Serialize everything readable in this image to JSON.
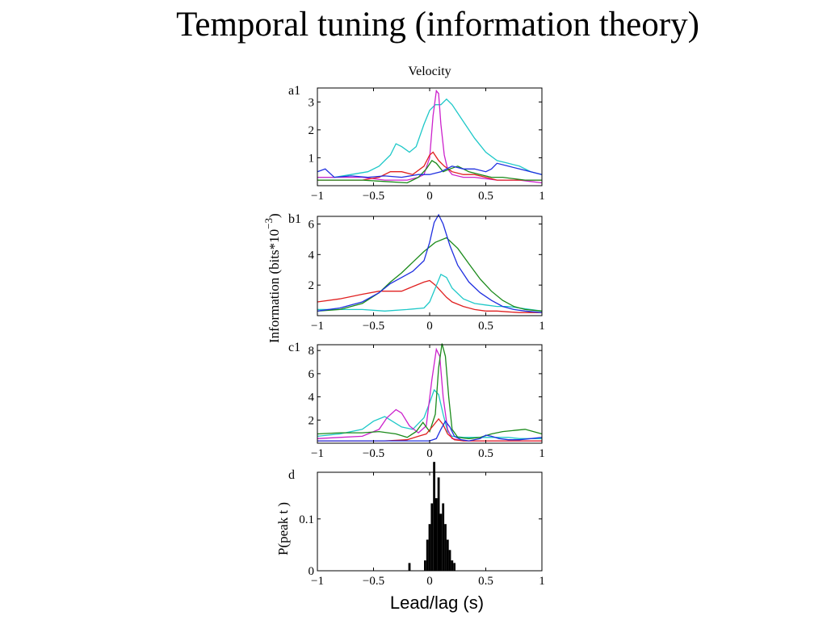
{
  "slide": {
    "title": "Temporal tuning (information theory)",
    "x_axis_label": "Lead/lag (s)"
  },
  "figure": {
    "panel_title": "Velocity",
    "ylabel_main": "Information (bits*10",
    "ylabel_main_exp": "−3",
    "ylabel_main_close": ")",
    "ylabel_hist": "P(peak   t )"
  },
  "chart_data": [
    {
      "id": "a1",
      "label": "a1",
      "type": "line",
      "xlim": [
        -1,
        1
      ],
      "ylim": [
        0,
        3.5
      ],
      "xticks": [
        -1,
        -0.5,
        0,
        0.5,
        1
      ],
      "xtick_labels": [
        "−1",
        "−0.5",
        "0",
        "0.5",
        "1"
      ],
      "yticks": [
        1,
        2,
        3
      ],
      "ytick_labels": [
        "1",
        "2",
        "3"
      ],
      "series": [
        {
          "color": "#1ec8c8",
          "x": [
            -1,
            -0.85,
            -0.7,
            -0.55,
            -0.45,
            -0.35,
            -0.3,
            -0.25,
            -0.18,
            -0.12,
            -0.05,
            0,
            0.05,
            0.1,
            0.15,
            0.2,
            0.3,
            0.4,
            0.5,
            0.6,
            0.7,
            0.8,
            0.9,
            1
          ],
          "y": [
            0.3,
            0.3,
            0.4,
            0.5,
            0.7,
            1.1,
            1.5,
            1.4,
            1.2,
            1.4,
            2.2,
            2.7,
            2.9,
            2.9,
            3.1,
            2.9,
            2.3,
            1.7,
            1.2,
            0.9,
            0.8,
            0.7,
            0.5,
            0.4
          ]
        },
        {
          "color": "#cc22cc",
          "x": [
            -1,
            -0.8,
            -0.6,
            -0.4,
            -0.2,
            -0.1,
            -0.05,
            0,
            0.03,
            0.06,
            0.08,
            0.1,
            0.13,
            0.16,
            0.2,
            0.3,
            0.4,
            0.5,
            0.6,
            0.7,
            0.8,
            0.9,
            1
          ],
          "y": [
            0.3,
            0.3,
            0.3,
            0.2,
            0.2,
            0.3,
            0.4,
            1.0,
            2.5,
            3.4,
            3.3,
            2.2,
            1.1,
            0.6,
            0.4,
            0.3,
            0.3,
            0.25,
            0.2,
            0.2,
            0.2,
            0.15,
            0.1
          ]
        },
        {
          "color": "#e02020",
          "x": [
            -1,
            -0.8,
            -0.6,
            -0.45,
            -0.35,
            -0.25,
            -0.15,
            -0.05,
            0,
            0.03,
            0.08,
            0.13,
            0.2,
            0.3,
            0.4,
            0.5,
            0.6,
            0.7,
            0.8,
            0.9,
            1
          ],
          "y": [
            0.2,
            0.2,
            0.2,
            0.3,
            0.5,
            0.5,
            0.4,
            0.7,
            1.1,
            1.2,
            0.9,
            0.7,
            0.5,
            0.4,
            0.4,
            0.3,
            0.2,
            0.2,
            0.2,
            0.2,
            0.2
          ]
        },
        {
          "color": "#1a8a1a",
          "x": [
            -1,
            -0.8,
            -0.6,
            -0.4,
            -0.2,
            -0.1,
            -0.03,
            0.02,
            0.06,
            0.12,
            0.18,
            0.25,
            0.35,
            0.45,
            0.55,
            0.65,
            0.75,
            0.85,
            1
          ],
          "y": [
            0.2,
            0.2,
            0.2,
            0.15,
            0.1,
            0.3,
            0.6,
            0.9,
            0.8,
            0.5,
            0.6,
            0.7,
            0.5,
            0.4,
            0.3,
            0.3,
            0.25,
            0.2,
            0.2
          ]
        },
        {
          "color": "#2030e0",
          "x": [
            -1,
            -0.93,
            -0.85,
            -0.7,
            -0.55,
            -0.4,
            -0.25,
            -0.1,
            0,
            0.1,
            0.2,
            0.3,
            0.4,
            0.5,
            0.55,
            0.6,
            0.7,
            0.8,
            0.9,
            1
          ],
          "y": [
            0.5,
            0.6,
            0.3,
            0.35,
            0.3,
            0.35,
            0.3,
            0.4,
            0.4,
            0.5,
            0.7,
            0.6,
            0.6,
            0.5,
            0.6,
            0.8,
            0.7,
            0.6,
            0.5,
            0.4
          ]
        }
      ]
    },
    {
      "id": "b1",
      "label": "b1",
      "type": "line",
      "xlim": [
        -1,
        1
      ],
      "ylim": [
        0,
        6.5
      ],
      "xticks": [
        -1,
        -0.5,
        0,
        0.5,
        1
      ],
      "xtick_labels": [
        "−1",
        "−0.5",
        "0",
        "0.5",
        "1"
      ],
      "yticks": [
        2,
        4,
        6
      ],
      "ytick_labels": [
        "2",
        "4",
        "6"
      ],
      "series": [
        {
          "color": "#e02020",
          "x": [
            -1,
            -0.8,
            -0.6,
            -0.45,
            -0.35,
            -0.25,
            -0.15,
            -0.05,
            0,
            0.05,
            0.1,
            0.15,
            0.2,
            0.3,
            0.4,
            0.5,
            0.6,
            0.7,
            0.8,
            0.9,
            1
          ],
          "y": [
            0.9,
            1.1,
            1.4,
            1.6,
            1.6,
            1.6,
            1.9,
            2.2,
            2.3,
            2.0,
            1.6,
            1.2,
            0.9,
            0.6,
            0.4,
            0.3,
            0.3,
            0.25,
            0.2,
            0.2,
            0.2
          ]
        },
        {
          "color": "#1ec8c8",
          "x": [
            -1,
            -0.8,
            -0.6,
            -0.4,
            -0.2,
            -0.05,
            0,
            0.05,
            0.1,
            0.15,
            0.2,
            0.3,
            0.4,
            0.5,
            0.6,
            0.7,
            0.8,
            0.9,
            1
          ],
          "y": [
            0.4,
            0.4,
            0.4,
            0.3,
            0.4,
            0.5,
            0.9,
            1.8,
            2.7,
            2.5,
            1.8,
            1.1,
            0.8,
            0.7,
            0.6,
            0.6,
            0.5,
            0.4,
            0.3
          ]
        },
        {
          "color": "#1a8a1a",
          "x": [
            -1,
            -0.8,
            -0.6,
            -0.45,
            -0.35,
            -0.25,
            -0.15,
            -0.05,
            0.05,
            0.15,
            0.25,
            0.35,
            0.45,
            0.55,
            0.65,
            0.75,
            0.85,
            1
          ],
          "y": [
            0.3,
            0.4,
            0.8,
            1.5,
            2.2,
            2.8,
            3.5,
            4.2,
            4.8,
            5.1,
            4.4,
            3.4,
            2.4,
            1.6,
            1.0,
            0.6,
            0.4,
            0.3
          ]
        },
        {
          "color": "#2030e0",
          "x": [
            -1,
            -0.8,
            -0.6,
            -0.45,
            -0.35,
            -0.25,
            -0.15,
            -0.05,
            0,
            0.04,
            0.08,
            0.12,
            0.18,
            0.25,
            0.35,
            0.45,
            0.55,
            0.65,
            0.75,
            0.85,
            1
          ],
          "y": [
            0.3,
            0.5,
            0.9,
            1.5,
            2.1,
            2.5,
            2.9,
            3.6,
            4.8,
            6.1,
            6.6,
            6.0,
            4.6,
            3.3,
            2.2,
            1.5,
            1.0,
            0.6,
            0.4,
            0.3,
            0.2
          ]
        }
      ]
    },
    {
      "id": "c1",
      "label": "c1",
      "type": "line",
      "xlim": [
        -1,
        1
      ],
      "ylim": [
        0,
        8.5
      ],
      "xticks": [
        -1,
        -0.5,
        0,
        0.5,
        1
      ],
      "xtick_labels": [
        "−1",
        "−0.5",
        "0",
        "0.5",
        "1"
      ],
      "yticks": [
        2,
        4,
        6,
        8
      ],
      "ytick_labels": [
        "2",
        "4",
        "6",
        "8"
      ],
      "series": [
        {
          "color": "#1ec8c8",
          "x": [
            -1,
            -0.8,
            -0.6,
            -0.5,
            -0.45,
            -0.4,
            -0.35,
            -0.25,
            -0.15,
            -0.05,
            0,
            0.04,
            0.08,
            0.12,
            0.16,
            0.2,
            0.3,
            0.4,
            0.5,
            0.6,
            0.7,
            0.8,
            0.9,
            1
          ],
          "y": [
            0.6,
            0.8,
            1.2,
            1.9,
            2.1,
            2.3,
            2.0,
            1.4,
            1.2,
            2.2,
            3.5,
            4.6,
            4.2,
            2.5,
            1.0,
            0.6,
            0.5,
            0.5,
            0.5,
            0.5,
            0.5,
            0.4,
            0.4,
            0.4
          ]
        },
        {
          "color": "#cc22cc",
          "x": [
            -1,
            -0.8,
            -0.6,
            -0.45,
            -0.38,
            -0.3,
            -0.25,
            -0.18,
            -0.1,
            -0.03,
            0.02,
            0.06,
            0.09,
            0.12,
            0.16,
            0.2,
            0.3,
            0.4,
            0.5,
            0.6,
            0.7,
            0.8,
            0.9,
            1
          ],
          "y": [
            0.4,
            0.5,
            0.6,
            1.2,
            2.2,
            2.9,
            2.6,
            1.5,
            0.9,
            1.5,
            5.5,
            8.1,
            7.5,
            4.0,
            1.2,
            0.4,
            0.2,
            0.2,
            0.2,
            0.2,
            0.2,
            0.2,
            0.2,
            0.2
          ]
        },
        {
          "color": "#1a8a1a",
          "x": [
            -1,
            -0.8,
            -0.6,
            -0.45,
            -0.3,
            -0.2,
            -0.12,
            -0.06,
            0,
            0.05,
            0.08,
            0.11,
            0.14,
            0.17,
            0.2,
            0.25,
            0.35,
            0.45,
            0.55,
            0.65,
            0.75,
            0.85,
            1
          ],
          "y": [
            0.8,
            0.9,
            0.9,
            1.0,
            0.8,
            0.5,
            1.0,
            1.8,
            1.0,
            2.5,
            6.5,
            8.6,
            7.5,
            4.0,
            1.2,
            0.5,
            0.4,
            0.5,
            0.8,
            1.0,
            1.1,
            1.2,
            0.8
          ]
        },
        {
          "color": "#e02020",
          "x": [
            -1,
            -0.8,
            -0.6,
            -0.4,
            -0.2,
            -0.1,
            -0.03,
            0.03,
            0.08,
            0.12,
            0.16,
            0.22,
            0.3,
            0.4,
            0.5,
            0.6,
            0.7,
            0.8,
            0.9,
            1
          ],
          "y": [
            0.2,
            0.2,
            0.2,
            0.2,
            0.3,
            0.6,
            0.8,
            1.5,
            2.1,
            1.6,
            0.8,
            0.3,
            0.2,
            0.2,
            0.2,
            0.2,
            0.2,
            0.2,
            0.2,
            0.2
          ]
        },
        {
          "color": "#2030e0",
          "x": [
            -1,
            -0.8,
            -0.6,
            -0.4,
            -0.2,
            0,
            0.06,
            0.1,
            0.14,
            0.18,
            0.22,
            0.28,
            0.35,
            0.45,
            0.5,
            0.55,
            0.62,
            0.7,
            0.8,
            0.9,
            1
          ],
          "y": [
            0.2,
            0.2,
            0.2,
            0.2,
            0.2,
            0.2,
            0.4,
            1.2,
            1.9,
            1.4,
            0.6,
            0.3,
            0.2,
            0.4,
            0.7,
            0.6,
            0.4,
            0.3,
            0.3,
            0.4,
            0.5
          ]
        }
      ]
    },
    {
      "id": "d",
      "label": "d",
      "type": "bar",
      "xlim": [
        -1,
        1
      ],
      "ylim": [
        0,
        0.19
      ],
      "xticks": [
        -1,
        -0.5,
        0,
        0.5,
        1
      ],
      "xtick_labels": [
        "−1",
        "−0.5",
        "0",
        "0.5",
        "1"
      ],
      "yticks": [
        0,
        0.1
      ],
      "ytick_labels": [
        "0",
        "0.1"
      ],
      "bin_width": 0.02,
      "x": [
        -0.18,
        -0.04,
        -0.02,
        0,
        0.02,
        0.04,
        0.06,
        0.08,
        0.1,
        0.12,
        0.14,
        0.16,
        0.18,
        0.2,
        0.22
      ],
      "values": [
        0.015,
        0.02,
        0.06,
        0.09,
        0.13,
        0.21,
        0.14,
        0.18,
        0.11,
        0.13,
        0.09,
        0.06,
        0.04,
        0.02,
        0.015
      ]
    }
  ]
}
